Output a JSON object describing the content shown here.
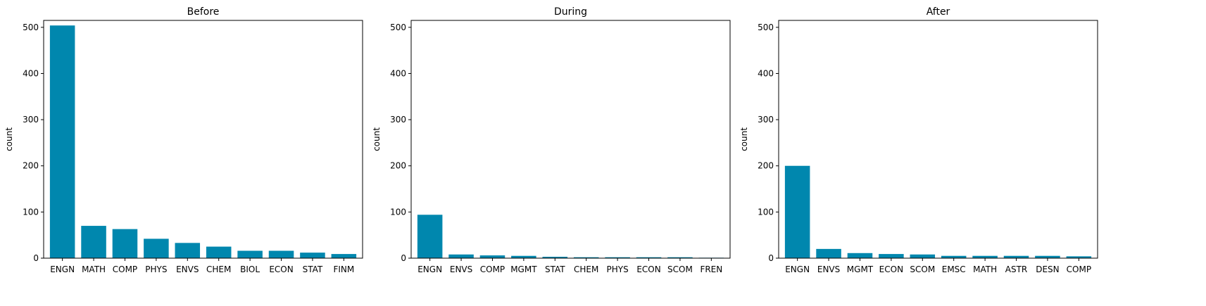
{
  "theme": {
    "bar_color": "#0087AE",
    "axes_color": "#000000",
    "background": "#ffffff"
  },
  "chart_data": [
    {
      "type": "bar",
      "title": "Before",
      "ylabel": "count",
      "ylim": [
        0,
        515
      ],
      "yticks": [
        0,
        100,
        200,
        300,
        400,
        500
      ],
      "categories": [
        "ENGN",
        "MATH",
        "COMP",
        "PHYS",
        "ENVS",
        "CHEM",
        "BIOL",
        "ECON",
        "STAT",
        "FINM"
      ],
      "values": [
        504,
        70,
        63,
        42,
        33,
        25,
        16,
        16,
        12,
        9
      ],
      "grid": false
    },
    {
      "type": "bar",
      "title": "During",
      "ylabel": "count",
      "ylim": [
        0,
        515
      ],
      "yticks": [
        0,
        100,
        200,
        300,
        400,
        500
      ],
      "categories": [
        "ENGN",
        "ENVS",
        "COMP",
        "MGMT",
        "STAT",
        "CHEM",
        "PHYS",
        "ECON",
        "SCOM",
        "FREN"
      ],
      "values": [
        94,
        8,
        6,
        5,
        3,
        2,
        2,
        2,
        2,
        1
      ],
      "grid": false
    },
    {
      "type": "bar",
      "title": "After",
      "ylabel": "count",
      "ylim": [
        0,
        515
      ],
      "yticks": [
        0,
        100,
        200,
        300,
        400,
        500
      ],
      "categories": [
        "ENGN",
        "ENVS",
        "MGMT",
        "ECON",
        "SCOM",
        "EMSC",
        "MATH",
        "ASTR",
        "DESN",
        "COMP"
      ],
      "values": [
        200,
        20,
        11,
        9,
        8,
        5,
        5,
        5,
        5,
        4
      ],
      "grid": false
    }
  ]
}
